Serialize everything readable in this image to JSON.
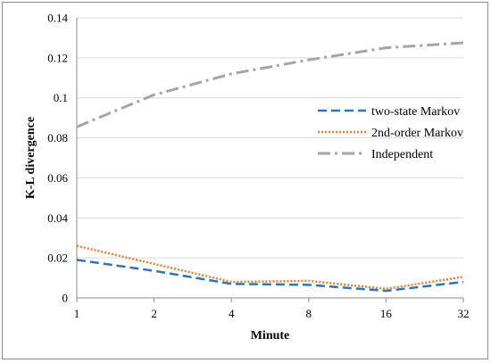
{
  "chart_data": {
    "type": "line",
    "title": "",
    "xlabel": "Minute",
    "ylabel": "K-L divergence",
    "categories": [
      "1",
      "2",
      "4",
      "8",
      "16",
      "32"
    ],
    "y_ticks": [
      "0",
      "0.02",
      "0.04",
      "0.06",
      "0.08",
      "0.1",
      "0.12",
      "0.14"
    ],
    "ylim": [
      0,
      0.14
    ],
    "grid": true,
    "legend_position": "right",
    "series": [
      {
        "name": "two-state Markov",
        "values": [
          0.019,
          0.0135,
          0.007,
          0.0065,
          0.0035,
          0.008
        ],
        "color": "#2e75b6",
        "dash": "dashed"
      },
      {
        "name": "2nd-order Markov",
        "values": [
          0.026,
          0.017,
          0.008,
          0.0085,
          0.0045,
          0.0105
        ],
        "color": "#ed7d31",
        "dash": "dotted"
      },
      {
        "name": "Independent",
        "values": [
          0.0855,
          0.1015,
          0.112,
          0.119,
          0.125,
          0.1275
        ],
        "color": "#a5a5a5",
        "dash": "dash-dot"
      }
    ]
  }
}
